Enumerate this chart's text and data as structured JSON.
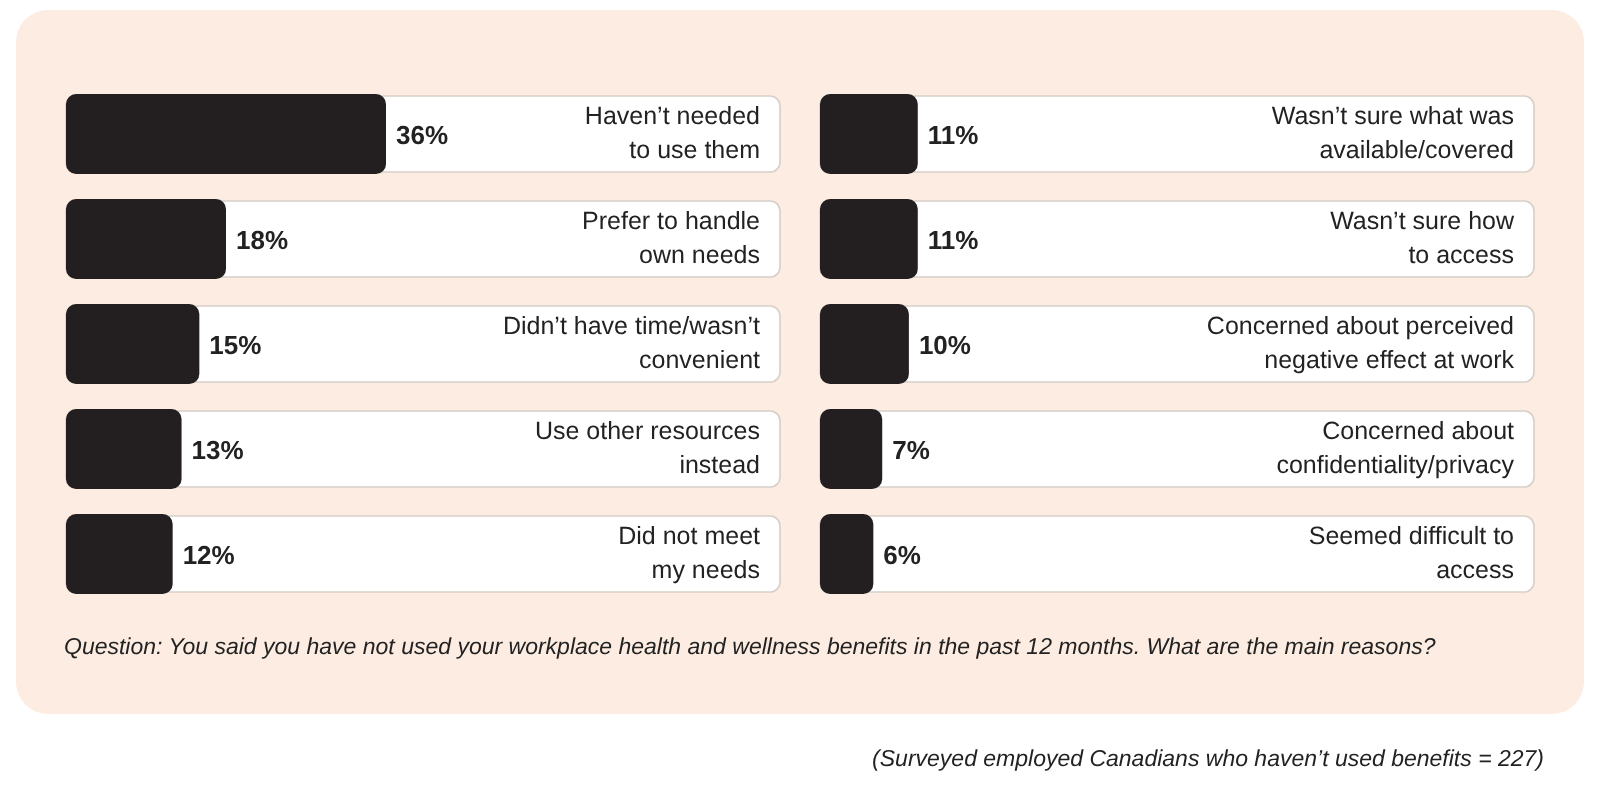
{
  "chart_data": [
    {
      "type": "bar",
      "orientation": "horizontal",
      "color": "#231f20",
      "categories": [
        "Haven’t needed\nto use them",
        "Prefer to handle\nown needs",
        "Didn’t have time/wasn’t\nconvenient",
        "Use other resources\ninstead",
        "Did not meet\nmy needs"
      ],
      "values": [
        36,
        18,
        15,
        13,
        12
      ],
      "value_labels": [
        "36%",
        "18%",
        "15%",
        "13%",
        "12%"
      ],
      "annotations": [
        "Question: You said you have not used your workplace health and wellness benefits in the past 12 months. What are the main reasons?",
        "(Surveyed employed Canadians who haven’t used benefits  = 227)"
      ]
    },
    {
      "type": "bar",
      "orientation": "horizontal",
      "color": "#231f20",
      "categories": [
        "Wasn’t sure what was\navailable/covered",
        "Wasn’t sure how\nto access",
        "Concerned about perceived\nnegative effect at work",
        "Concerned about\nconfidentiality/privacy",
        "Seemed difficult to\naccess"
      ],
      "values": [
        11,
        11,
        10,
        7,
        6
      ],
      "value_labels": [
        "11%",
        "11%",
        "10%",
        "7%",
        "6%"
      ]
    }
  ]
}
